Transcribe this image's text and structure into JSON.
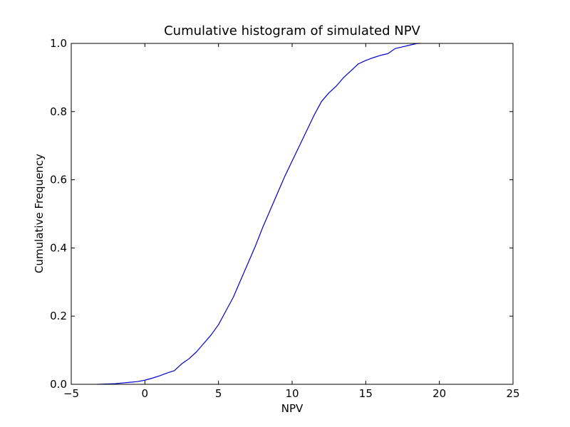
{
  "chart_data": {
    "type": "line",
    "title": "Cumulative histogram of simulated NPV",
    "xlabel": "NPV",
    "ylabel": "Cumulative Frequency",
    "xlim": [
      -5,
      25
    ],
    "ylim": [
      0.0,
      1.0
    ],
    "xticks": [
      -5,
      0,
      5,
      10,
      15,
      20,
      25
    ],
    "xtick_labels": [
      "−5",
      "0",
      "5",
      "10",
      "15",
      "20",
      "25"
    ],
    "yticks": [
      0.0,
      0.2,
      0.4,
      0.6,
      0.8,
      1.0
    ],
    "ytick_labels": [
      "0.0",
      "0.2",
      "0.4",
      "0.6",
      "0.8",
      "1.0"
    ],
    "grid": false,
    "legend": "none",
    "series_color": "#0000cc",
    "series": [
      {
        "x": [
          -3.2,
          -2.5,
          -2.0,
          -1.5,
          -1.0,
          -0.5,
          0.0,
          0.5,
          1.0,
          1.5,
          2.0,
          2.5,
          3.0,
          3.5,
          4.0,
          4.5,
          5.0,
          5.5,
          6.0,
          6.5,
          7.0,
          7.5,
          8.0,
          8.5,
          9.0,
          9.5,
          10.0,
          10.5,
          11.0,
          11.5,
          12.0,
          12.5,
          13.0,
          13.5,
          14.0,
          14.5,
          15.0,
          15.5,
          16.0,
          16.5,
          17.0,
          17.5,
          18.0,
          18.5,
          18.7
        ],
        "y": [
          0.0,
          0.001,
          0.002,
          0.004,
          0.006,
          0.008,
          0.012,
          0.018,
          0.025,
          0.033,
          0.04,
          0.06,
          0.075,
          0.095,
          0.12,
          0.145,
          0.175,
          0.215,
          0.255,
          0.305,
          0.355,
          0.405,
          0.46,
          0.51,
          0.56,
          0.61,
          0.655,
          0.7,
          0.745,
          0.79,
          0.83,
          0.855,
          0.875,
          0.9,
          0.92,
          0.94,
          0.95,
          0.958,
          0.965,
          0.97,
          0.985,
          0.99,
          0.995,
          1.0,
          1.0
        ]
      }
    ]
  }
}
